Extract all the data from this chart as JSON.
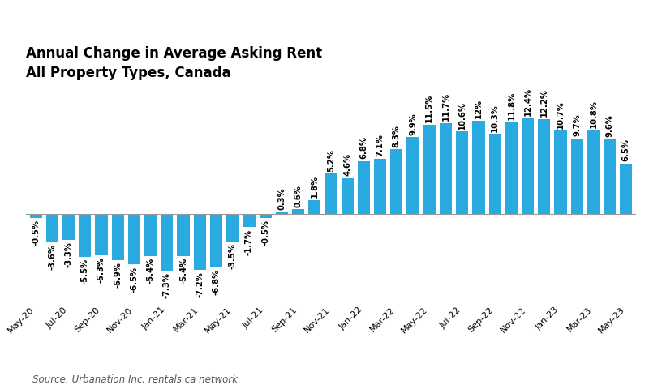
{
  "x_labels": [
    "May-20",
    "Jul-20",
    "Sep-20",
    "Nov-20",
    "Jan-21",
    "Mar-21",
    "May-21",
    "Jul-21",
    "Sep-21",
    "Nov-21",
    "Jan-22",
    "Mar-22",
    "May-22",
    "Jul-22",
    "Sep-22",
    "Nov-22",
    "Jan-23",
    "Mar-23",
    "May-23"
  ],
  "values": [
    -0.5,
    -3.6,
    -3.3,
    -5.5,
    -5.3,
    -5.9,
    -6.5,
    -5.4,
    -7.3,
    -5.4,
    -7.2,
    -6.8,
    -3.5,
    -1.7,
    -0.5,
    0.3,
    0.6,
    1.8,
    5.2,
    4.6,
    6.8,
    7.1,
    8.3,
    9.9,
    11.5,
    11.7,
    10.6,
    12.0,
    10.3,
    11.8,
    12.4,
    12.2,
    10.7,
    9.7,
    10.8,
    9.6,
    6.5
  ],
  "bar_color": "#29ABE2",
  "title_line1": "Annual Change in Average Asking Rent",
  "title_line2": "All Property Types, Canada",
  "source": "Source: Urbanation Inc, rentals.ca network",
  "background_color": "#ffffff",
  "zero_line_color": "#999999",
  "label_fontsize": 7.2,
  "title_fontsize": 12,
  "source_fontsize": 8.5,
  "ylim_min": -11.5,
  "ylim_max": 16.5
}
